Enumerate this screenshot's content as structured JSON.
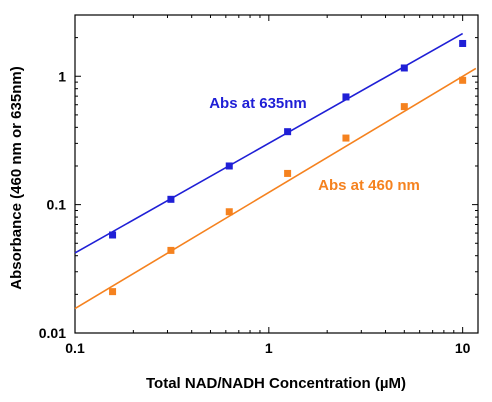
{
  "chart_data": {
    "type": "scatter",
    "title": "",
    "xlabel": "Total NAD/NADH Concentration (µM)",
    "ylabel": "Absorbance (460 nm or 635nm)",
    "xscale": "log",
    "yscale": "log",
    "xlim": [
      0.1,
      12
    ],
    "ylim": [
      0.01,
      3
    ],
    "x_ticks": [
      "0.1",
      "1",
      "10"
    ],
    "y_ticks": [
      "0.01",
      "0.1",
      "1"
    ],
    "grid": false,
    "series": [
      {
        "name": "Abs at 635nm",
        "color": "#1f1fd6",
        "marker": "square",
        "x": [
          0.15625,
          0.3125,
          0.625,
          1.25,
          2.5,
          5,
          10
        ],
        "y": [
          0.058,
          0.11,
          0.2,
          0.37,
          0.69,
          1.16,
          1.8
        ],
        "fit": [
          [
            0.1,
            0.042
          ],
          [
            10,
            2.15
          ]
        ]
      },
      {
        "name": "Abs at 460 nm",
        "color": "#f5821f",
        "marker": "square",
        "x": [
          0.15625,
          0.3125,
          0.625,
          1.25,
          2.5,
          5,
          10
        ],
        "y": [
          0.021,
          0.044,
          0.088,
          0.175,
          0.33,
          0.58,
          0.93
        ],
        "fit": [
          [
            0.1,
            0.0155
          ],
          [
            11.7,
            1.15
          ]
        ]
      }
    ]
  }
}
